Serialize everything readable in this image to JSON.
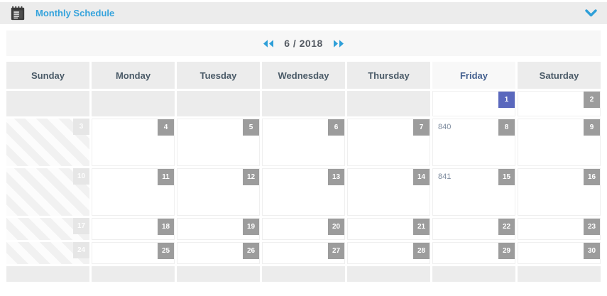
{
  "header": {
    "title": "Monthly Schedule",
    "icon": "schedule-notepad-icon",
    "collapse_icon": "chevron-down-icon"
  },
  "nav": {
    "prev_icon": "double-left-arrow-icon",
    "month_label": "6 / 2018",
    "next_icon": "double-right-arrow-icon"
  },
  "colors": {
    "accent_blue": "#35a3dc",
    "badge_gray": "#9c9c9c",
    "badge_selected_indigo": "#5a68bd",
    "header_gray": "#ececec",
    "event_text": "#7d8b9e"
  },
  "calendar": {
    "day_headers": [
      "Sunday",
      "Monday",
      "Tuesday",
      "Wednesday",
      "Thursday",
      "Friday",
      "Saturday"
    ],
    "highlighted_header": "Friday",
    "weeks": [
      {
        "height": "h-sm",
        "cells": [
          {
            "type": "blank"
          },
          {
            "type": "blank"
          },
          {
            "type": "blank"
          },
          {
            "type": "blank"
          },
          {
            "type": "blank"
          },
          {
            "type": "today",
            "day": "1"
          },
          {
            "type": "day",
            "day": "2"
          }
        ]
      },
      {
        "height": "h-lg",
        "cells": [
          {
            "type": "offday",
            "day": "3"
          },
          {
            "type": "day",
            "day": "4"
          },
          {
            "type": "day",
            "day": "5"
          },
          {
            "type": "day",
            "day": "6"
          },
          {
            "type": "day",
            "day": "7"
          },
          {
            "type": "day",
            "day": "8",
            "events": [
              "840"
            ]
          },
          {
            "type": "day",
            "day": "9"
          }
        ]
      },
      {
        "height": "h-lg",
        "cells": [
          {
            "type": "offday",
            "day": "10"
          },
          {
            "type": "day",
            "day": "11"
          },
          {
            "type": "day",
            "day": "12"
          },
          {
            "type": "day",
            "day": "13"
          },
          {
            "type": "day",
            "day": "14"
          },
          {
            "type": "day",
            "day": "15",
            "events": [
              "841"
            ]
          },
          {
            "type": "day",
            "day": "16"
          }
        ]
      },
      {
        "height": "h-xs",
        "cells": [
          {
            "type": "offday",
            "day": "17"
          },
          {
            "type": "day",
            "day": "18"
          },
          {
            "type": "day",
            "day": "19"
          },
          {
            "type": "day",
            "day": "20"
          },
          {
            "type": "day",
            "day": "21"
          },
          {
            "type": "day",
            "day": "22"
          },
          {
            "type": "day",
            "day": "23"
          }
        ]
      },
      {
        "height": "h-xs",
        "cells": [
          {
            "type": "offday",
            "day": "24"
          },
          {
            "type": "day",
            "day": "25"
          },
          {
            "type": "day",
            "day": "26"
          },
          {
            "type": "day",
            "day": "27"
          },
          {
            "type": "day",
            "day": "28"
          },
          {
            "type": "day",
            "day": "29"
          },
          {
            "type": "day",
            "day": "30"
          }
        ]
      },
      {
        "height": "h-strip",
        "cells": [
          {
            "type": "blank"
          },
          {
            "type": "blank"
          },
          {
            "type": "blank"
          },
          {
            "type": "blank"
          },
          {
            "type": "blank"
          },
          {
            "type": "blank"
          },
          {
            "type": "blank"
          }
        ]
      }
    ]
  }
}
